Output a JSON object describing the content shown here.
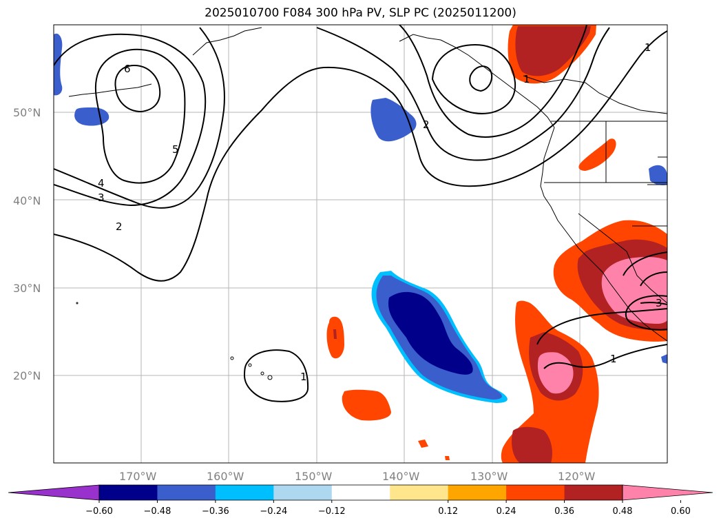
{
  "title": "2025010700 F084 300 hPa PV, SLP PC (2025011200)",
  "lat_labels": [
    "50°N",
    "40°N",
    "30°N",
    "20°N"
  ],
  "lon_labels": [
    "170°W",
    "160°W",
    "150°W",
    "140°W",
    "130°W",
    "120°W"
  ],
  "colorbar": {
    "tick_labels": [
      "−0.60",
      "−0.48",
      "−0.36",
      "−0.24",
      "−0.12",
      "0.12",
      "0.24",
      "0.36",
      "0.48",
      "0.60"
    ],
    "colors": [
      "#9932cc",
      "#00008b",
      "#3a5fcd",
      "#00bfff",
      "#add8f0",
      "#ffffff",
      "#ffe68c",
      "#ffa500",
      "#ff4500",
      "#b22222",
      "#ff82ab"
    ]
  },
  "contour_labels": [
    "6",
    "5",
    "4",
    "3",
    "2",
    "2",
    "1",
    "1",
    "1",
    "1",
    "3"
  ]
}
